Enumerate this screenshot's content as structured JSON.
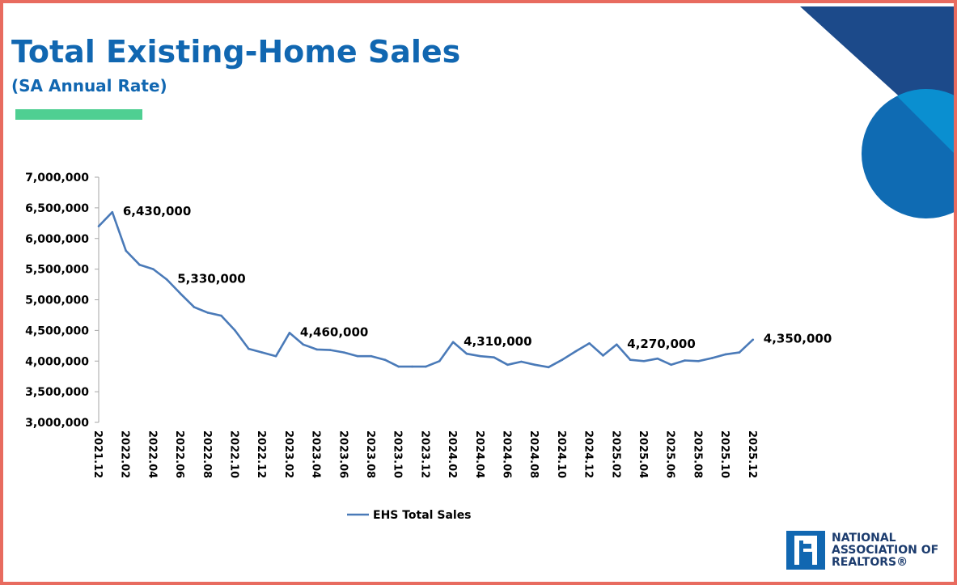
{
  "title": "Total Existing-Home Sales",
  "subtitle": "(SA Annual Rate)",
  "colors": {
    "title": "#1167b1",
    "accent_bar": "#4fcf92",
    "series": "#4a7ab8",
    "border": "#e86b5f",
    "navy": "#1c4a8a",
    "blue_mid": "#0f6bb3",
    "blue_light": "#0a8fd0"
  },
  "logo": {
    "line1": "NATIONAL",
    "line2": "ASSOCIATION OF",
    "line3": "REALTORS®",
    "icon": "realtor-r-icon"
  },
  "chart_data": {
    "type": "line",
    "title": "",
    "xlabel": "",
    "ylabel": "",
    "ylim": [
      3000000,
      7000000
    ],
    "yticks": [
      "3,000,000",
      "3,500,000",
      "4,000,000",
      "4,500,000",
      "5,000,000",
      "5,500,000",
      "6,000,000",
      "6,500,000",
      "7,000,000"
    ],
    "ytick_values": [
      3000000,
      3500000,
      4000000,
      4500000,
      5000000,
      5500000,
      6000000,
      6500000,
      7000000
    ],
    "xticks": [
      "2021.12",
      "2022.02",
      "2022.04",
      "2022.06",
      "2022.08",
      "2022.10",
      "2022.12",
      "2023.02",
      "2023.04",
      "2023.06",
      "2023.08",
      "2023.10",
      "2023.12",
      "2024.02",
      "2024.04",
      "2024.06",
      "2024.08",
      "2024.10",
      "2024.12",
      "2025.02",
      "2025.04",
      "2025.06",
      "2025.08",
      "2025.10",
      "2025.12"
    ],
    "grid": false,
    "legend": "bottom",
    "series": [
      {
        "name": "EHS Total Sales",
        "x": [
          "2021.12",
          "2022.01",
          "2022.02",
          "2022.03",
          "2022.04",
          "2022.05",
          "2022.06",
          "2022.07",
          "2022.08",
          "2022.09",
          "2022.10",
          "2022.11",
          "2022.12",
          "2023.01",
          "2023.02",
          "2023.03",
          "2023.04",
          "2023.05",
          "2023.06",
          "2023.07",
          "2023.08",
          "2023.09",
          "2023.10",
          "2023.11",
          "2023.12",
          "2024.01",
          "2024.02",
          "2024.03",
          "2024.04",
          "2024.05",
          "2024.06",
          "2024.07",
          "2024.08",
          "2024.09",
          "2024.10",
          "2024.11",
          "2024.12",
          "2025.01",
          "2025.02",
          "2025.03",
          "2025.04",
          "2025.05",
          "2025.06",
          "2025.07",
          "2025.08",
          "2025.09",
          "2025.10",
          "2025.11",
          "2025.12"
        ],
        "values": [
          6200000,
          6430000,
          5800000,
          5570000,
          5500000,
          5330000,
          5100000,
          4880000,
          4790000,
          4740000,
          4500000,
          4200000,
          4140000,
          4080000,
          4460000,
          4270000,
          4190000,
          4180000,
          4140000,
          4080000,
          4080000,
          4020000,
          3910000,
          3910000,
          3910000,
          4000000,
          4310000,
          4120000,
          4080000,
          4060000,
          3940000,
          3990000,
          3940000,
          3900000,
          4020000,
          4160000,
          4290000,
          4090000,
          4270000,
          4020000,
          4000000,
          4040000,
          3940000,
          4010000,
          4000000,
          4050000,
          4110000,
          4140000,
          4350000
        ]
      }
    ],
    "annotations": [
      {
        "x": "2022.01",
        "label": "6,430,000"
      },
      {
        "x": "2022.05",
        "label": "5,330,000"
      },
      {
        "x": "2023.02",
        "label": "4,460,000"
      },
      {
        "x": "2024.02",
        "label": "4,310,000"
      },
      {
        "x": "2025.02",
        "label": "4,270,000"
      },
      {
        "x": "2025.12",
        "label": "4,350,000"
      }
    ]
  }
}
